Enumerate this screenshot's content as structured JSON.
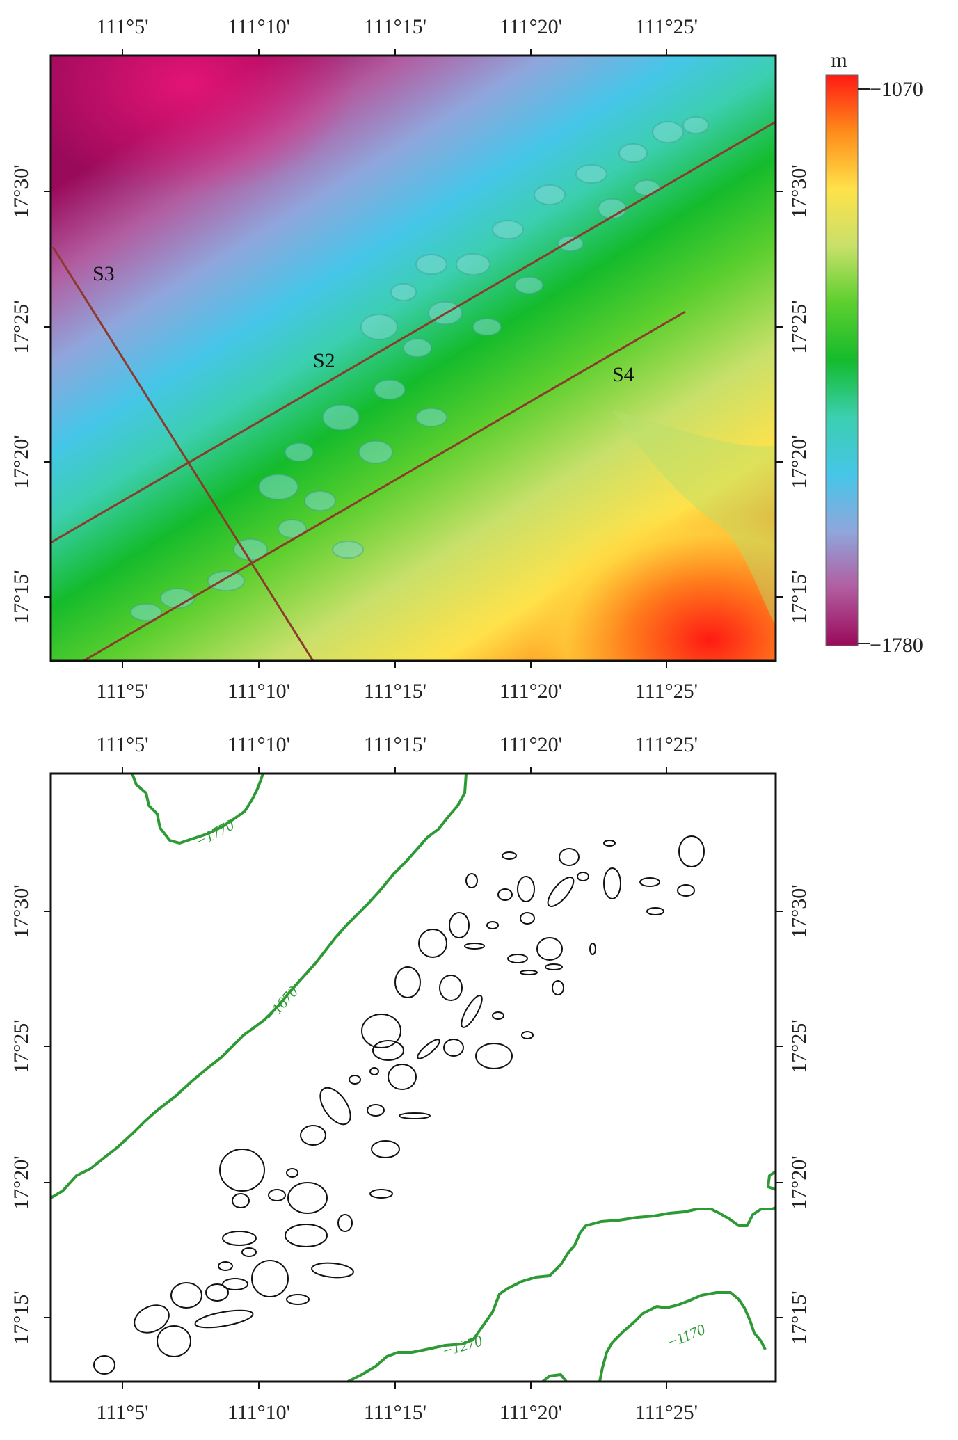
{
  "colorbar": {
    "unit": "m",
    "max_label": "−1070",
    "min_label": "−1780",
    "max_value": -1070,
    "min_value": -1780,
    "colors": [
      "#ff1a14",
      "#ff8c1a",
      "#ffe24a",
      "#c8e06a",
      "#5ccf2e",
      "#14bb2c",
      "#3ccfb0",
      "#45c6e8",
      "#8fa6dc",
      "#b25ca0",
      "#9a0a5a"
    ]
  },
  "axes": {
    "x_ticks": [
      "111°5'",
      "111°10'",
      "111°15'",
      "111°20'",
      "111°25'"
    ],
    "y_ticks": [
      "17°30'",
      "17°25'",
      "17°20'",
      "17°15'"
    ]
  },
  "top_map": {
    "profiles": [
      {
        "name": "S2",
        "color": "#8b3a2b"
      },
      {
        "name": "S3",
        "color": "#8b3a2b"
      },
      {
        "name": "S4",
        "color": "#8b3a2b"
      }
    ]
  },
  "bottom_map": {
    "contour_color": "#2e9a35",
    "contour_labels": [
      "−1770",
      "−1670",
      "−1270",
      "−1170"
    ],
    "outline_color": "#111111"
  }
}
